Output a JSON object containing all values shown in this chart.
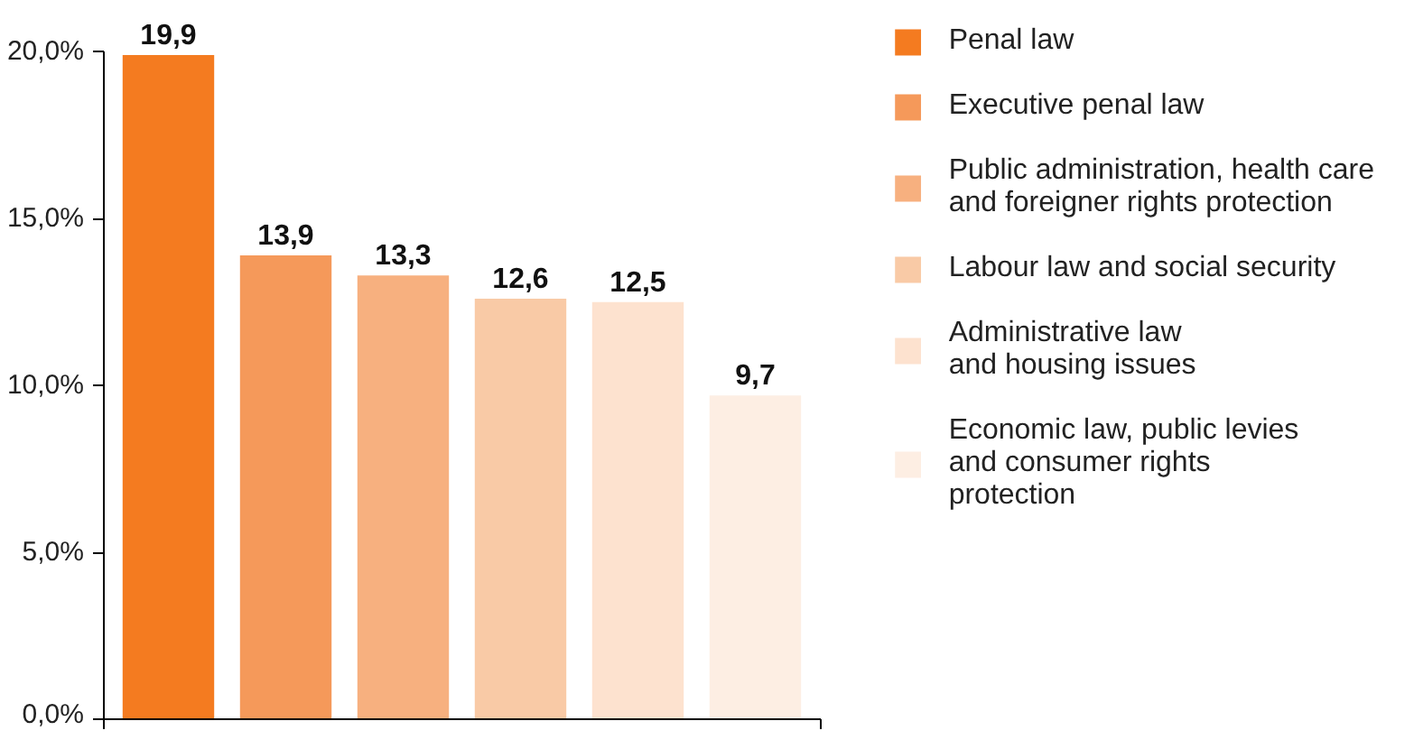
{
  "chart_data": {
    "type": "bar",
    "stacked": true,
    "categories": [
      null,
      null,
      null,
      null,
      null,
      null
    ],
    "series": [
      {
        "name": "Penal law",
        "color": "#f47b20",
        "values": [
          19.9,
          null,
          null,
          null,
          null,
          null
        ],
        "value_labels": [
          "19,9",
          null,
          null,
          null,
          null,
          null
        ]
      },
      {
        "name": "Executive penal law",
        "color": "#f5995a",
        "values": [
          null,
          13.9,
          null,
          null,
          null,
          null
        ],
        "value_labels": [
          null,
          "13,9",
          null,
          null,
          null,
          null
        ]
      },
      {
        "name": "Public administration, health care\nand foreigner rights protection",
        "color": "#f7b07f",
        "values": [
          null,
          null,
          13.3,
          null,
          null,
          null
        ],
        "value_labels": [
          null,
          null,
          "13,3",
          null,
          null,
          null
        ]
      },
      {
        "name": "Labour law and social security",
        "color": "#f9caa6",
        "values": [
          null,
          null,
          null,
          12.6,
          null,
          null
        ],
        "value_labels": [
          null,
          null,
          null,
          "12,6",
          null,
          null
        ]
      },
      {
        "name": "Administrative law\nand housing issues",
        "color": "#fde2cf",
        "values": [
          null,
          null,
          null,
          null,
          12.5,
          null
        ],
        "value_labels": [
          null,
          null,
          null,
          null,
          "12,5",
          null
        ]
      },
      {
        "name": "Economic law, public levies\nand consumer rights\nprotection",
        "color": "#fdeee3",
        "values": [
          null,
          null,
          null,
          null,
          null,
          9.7
        ],
        "value_labels": [
          null,
          null,
          null,
          null,
          null,
          "9,7"
        ]
      }
    ],
    "ylim": [
      0,
      20
    ],
    "yticks": [
      {
        "value": 0,
        "label": "0,0%"
      },
      {
        "value": 5,
        "label": "5,0%"
      },
      {
        "value": 10,
        "label": "10,0%"
      },
      {
        "value": 15,
        "label": "15,0%"
      },
      {
        "value": 20,
        "label": "20,0%"
      }
    ],
    "tick_labels": "y",
    "legend": "right"
  }
}
